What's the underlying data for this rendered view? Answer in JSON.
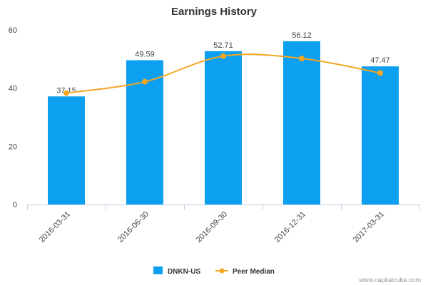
{
  "chart_data": {
    "type": "bar",
    "title": "Earnings History",
    "xlabel": "",
    "ylabel": "",
    "categories": [
      "2016-03-31",
      "2016-06-30",
      "2016-09-30",
      "2016-12-31",
      "2017-03-31"
    ],
    "ylim": [
      0,
      60
    ],
    "yticks": [
      "0",
      "20",
      "40",
      "60"
    ],
    "grid": false,
    "legend_position": "bottom",
    "series": [
      {
        "name": "DNKN-US",
        "type": "bar",
        "color": "#0da0f0",
        "values": [
          37.15,
          49.59,
          52.71,
          56.12,
          47.47
        ],
        "labels": [
          "37.15",
          "49.59",
          "52.71",
          "56.12",
          "47.47"
        ]
      },
      {
        "name": "Peer Median",
        "type": "line",
        "color": "#f5a623",
        "values": [
          38.3,
          42.2,
          51.0,
          50.2,
          45.2
        ]
      }
    ]
  },
  "credit": "www.capitalcube.com"
}
